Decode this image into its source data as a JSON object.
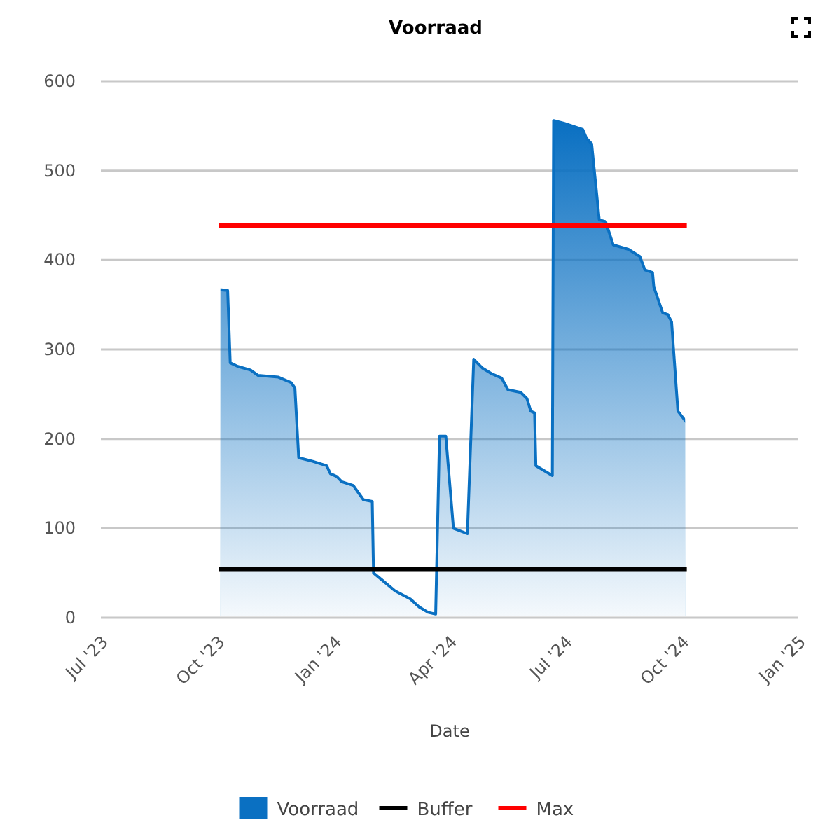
{
  "chart_data": {
    "type": "area",
    "title": "Voorraad",
    "xlabel": "Date",
    "xlim": [
      "2023-07-01",
      "2025-01-01"
    ],
    "xticks": [
      {
        "value": "2023-07-01",
        "label": "Jul '23"
      },
      {
        "value": "2023-10-01",
        "label": "Oct '23"
      },
      {
        "value": "2024-01-01",
        "label": "Jan '24"
      },
      {
        "value": "2024-04-01",
        "label": "Apr '24"
      },
      {
        "value": "2024-07-01",
        "label": "Jul '24"
      },
      {
        "value": "2024-10-01",
        "label": "Oct '24"
      },
      {
        "value": "2025-01-01",
        "label": "Jan '25"
      }
    ],
    "ylim": [
      0,
      600
    ],
    "yticks": [
      0,
      100,
      200,
      300,
      400,
      500,
      600
    ],
    "grid": "y",
    "legend": "bottom",
    "series": [
      {
        "name": "Voorraad",
        "type": "area",
        "color": "#0a70c2",
        "x": [
          "2023-10-02",
          "2023-10-09",
          "2023-10-11",
          "2023-10-17",
          "2023-10-27",
          "2023-11-02",
          "2023-11-18",
          "2023-11-28",
          "2023-12-01",
          "2023-12-04",
          "2023-12-15",
          "2023-12-26",
          "2023-12-29",
          "2024-01-03",
          "2024-01-07",
          "2024-01-16",
          "2024-01-24",
          "2024-01-31",
          "2024-02-01",
          "2024-02-07",
          "2024-02-18",
          "2024-03-01",
          "2024-03-08",
          "2024-03-15",
          "2024-03-21",
          "2024-03-24",
          "2024-03-29",
          "2024-04-04",
          "2024-04-15",
          "2024-04-20",
          "2024-04-27",
          "2024-05-04",
          "2024-05-12",
          "2024-05-17",
          "2024-05-27",
          "2024-06-01",
          "2024-06-04",
          "2024-06-07",
          "2024-06-08",
          "2024-06-21",
          "2024-06-22",
          "2024-06-30",
          "2024-07-15",
          "2024-07-18",
          "2024-07-22",
          "2024-07-28",
          "2024-08-02",
          "2024-08-08",
          "2024-08-20",
          "2024-08-29",
          "2024-09-02",
          "2024-09-08",
          "2024-09-09",
          "2024-09-16",
          "2024-09-20",
          "2024-09-23",
          "2024-09-28",
          "2024-10-05"
        ],
        "values": [
          367,
          366,
          285,
          281,
          277,
          271,
          269,
          263,
          257,
          179,
          175,
          170,
          161,
          158,
          152,
          148,
          132,
          130,
          50,
          43,
          30,
          21,
          12,
          6,
          4,
          203,
          203,
          100,
          94,
          289,
          279,
          273,
          268,
          255,
          252,
          245,
          231,
          229,
          170,
          159,
          556,
          553,
          546,
          536,
          530,
          445,
          443,
          417,
          412,
          404,
          389,
          386,
          370,
          341,
          339,
          331,
          231,
          218
        ]
      },
      {
        "name": "Buffer",
        "type": "line",
        "color": "#000000",
        "x": [
          "2023-10-02",
          "2024-10-05"
        ],
        "values": [
          54,
          54
        ]
      },
      {
        "name": "Max",
        "type": "line",
        "color": "#ff0000",
        "x": [
          "2023-10-02",
          "2024-10-05"
        ],
        "values": [
          439,
          439
        ]
      }
    ]
  }
}
